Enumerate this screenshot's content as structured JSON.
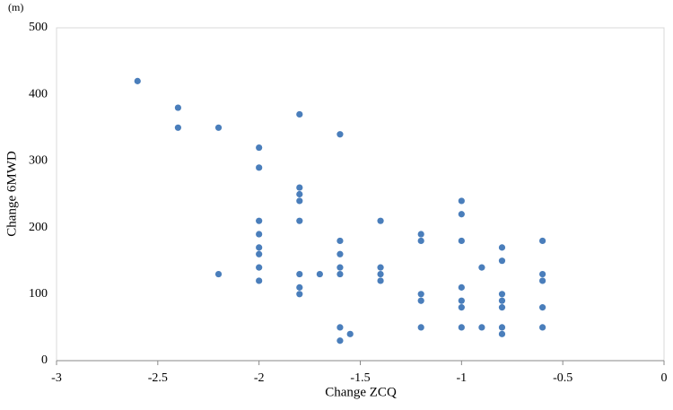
{
  "chart_data": {
    "type": "scatter",
    "y_unit": "(m)",
    "x_label": "Change ZCQ",
    "y_label": "Change 6MWD",
    "xlim": [
      -3,
      0
    ],
    "xticks": [
      -3,
      -2.5,
      -2,
      -1.5,
      -1,
      -0.5,
      0
    ],
    "ylim": [
      0,
      500
    ],
    "yticks": [
      0,
      100,
      200,
      300,
      400,
      500
    ],
    "series": [
      {
        "color": "#4a7ebb",
        "x": [
          -2.6,
          -2.4,
          -2.4,
          -2.2,
          -2.2,
          -2,
          -2,
          -2,
          -2,
          -2,
          -2,
          -2,
          -2,
          -1.8,
          -1.8,
          -1.8,
          -1.8,
          -1.8,
          -1.8,
          -1.8,
          -1.8,
          -1.7,
          -1.6,
          -1.6,
          -1.6,
          -1.6,
          -1.6,
          -1.6,
          -1.6,
          -1.55,
          -1.4,
          -1.4,
          -1.4,
          -1.4,
          -1.2,
          -1.2,
          -1.2,
          -1.2,
          -1.2,
          -1,
          -1,
          -1,
          -1,
          -1,
          -1,
          -1,
          -0.9,
          -0.9,
          -0.8,
          -0.8,
          -0.8,
          -0.8,
          -0.8,
          -0.8,
          -0.8,
          -0.6,
          -0.6,
          -0.6,
          -0.6,
          -0.6
        ],
        "values": [
          420,
          380,
          350,
          350,
          130,
          320,
          290,
          210,
          190,
          170,
          160,
          140,
          120,
          370,
          260,
          250,
          240,
          210,
          130,
          110,
          100,
          130,
          340,
          180,
          160,
          140,
          130,
          50,
          30,
          40,
          210,
          140,
          130,
          120,
          190,
          180,
          100,
          90,
          50,
          240,
          220,
          180,
          110,
          90,
          80,
          50,
          140,
          50,
          170,
          150,
          100,
          90,
          80,
          50,
          40,
          180,
          130,
          120,
          80,
          50
        ]
      }
    ]
  }
}
